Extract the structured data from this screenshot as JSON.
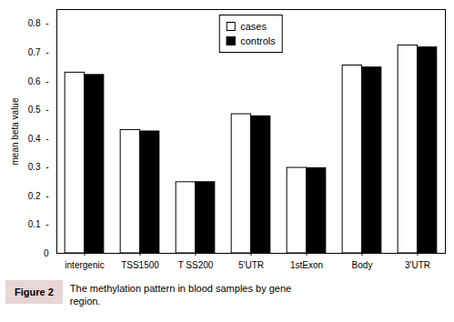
{
  "chart_data": {
    "type": "bar",
    "categories": [
      "intergenic",
      "TSS1500",
      "T SS200",
      "5'UTR",
      "1stExon",
      "Body",
      "3'UTR"
    ],
    "series": [
      {
        "name": "cases",
        "color": "#ffffff",
        "values": [
          0.63,
          0.43,
          0.248,
          0.485,
          0.298,
          0.655,
          0.725
        ]
      },
      {
        "name": "controls",
        "color": "#000000",
        "values": [
          0.622,
          0.425,
          0.248,
          0.478,
          0.297,
          0.648,
          0.718
        ]
      }
    ],
    "ylabel": "mean beta value",
    "ylim": [
      0,
      0.85
    ],
    "yticks": [
      0,
      {
        "value": 0.1,
        "label": "0.1  -"
      },
      {
        "value": 0.2,
        "label": "0.2  -"
      },
      {
        "value": 0.3,
        "label": "0.3  -"
      },
      {
        "value": 0.4,
        "label": "0.4  -"
      },
      {
        "value": 0.5,
        "label": "0.5  -"
      },
      {
        "value": 0.6,
        "label": "0.6  -"
      },
      {
        "value": 0.7,
        "label": "0.7  -"
      },
      {
        "value": 0.8,
        "label": "0.8  -"
      }
    ],
    "legend": "upper center",
    "grid": false,
    "annotations": [
      "Figure 2",
      "The methylation pattern in blood samples by gene\nregion."
    ]
  }
}
